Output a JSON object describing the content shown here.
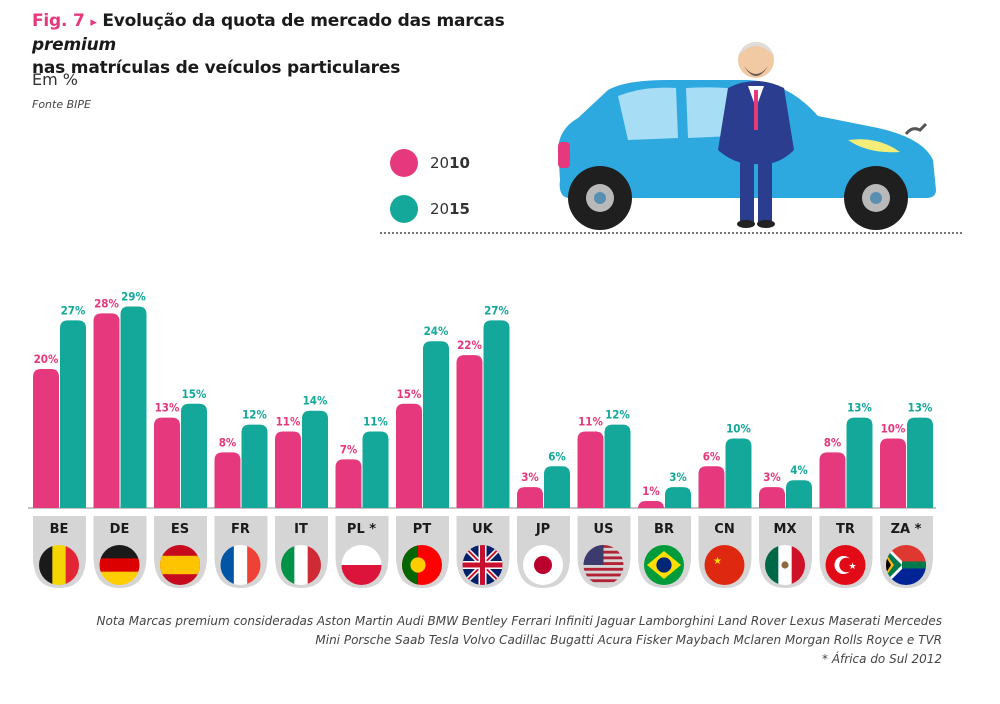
{
  "header": {
    "fig_label": "Fig. 7",
    "title_part1": "Evolução da quota de mercado das marcas ",
    "title_italic": "premium",
    "title_part2": "nas matrículas de veículos particulares",
    "subtitle": "Em %",
    "source": "Fonte  BIPE"
  },
  "legend": {
    "items": [
      {
        "prefix": "20",
        "suffix": "10",
        "color": "#e6387d"
      },
      {
        "prefix": "20",
        "suffix": "15",
        "color": "#13a899"
      }
    ]
  },
  "colors": {
    "series_2010": "#e6387d",
    "series_2015": "#13a899",
    "label_bg": "#d5d5d5",
    "car": "#2ea9e0"
  },
  "notes": {
    "line1": "Nota  Marcas premium consideradas  Aston Martin  Audi  BMW  Bentley  Ferrari  Infiniti  Jaguar  Lamborghini  Land Rover  Lexus  Maserati  Mercedes",
    "line2": "Mini  Porsche  Saab  Tesla  Volvo  Cadillac  Bugatti  Acura  Fisker  Maybach  Mclaren  Morgan  Rolls Royce e TVR",
    "line3": "* África do Sul  2012"
  },
  "chart_data": {
    "type": "bar",
    "categories": [
      "BE",
      "DE",
      "ES",
      "FR",
      "IT",
      "PL *",
      "PT",
      "UK",
      "JP",
      "US",
      "BR",
      "CN",
      "MX",
      "TR",
      "ZA *"
    ],
    "series": [
      {
        "name": "2010",
        "values": [
          20,
          28,
          13,
          8,
          11,
          7,
          15,
          22,
          3,
          11,
          1,
          6,
          3,
          8,
          10
        ]
      },
      {
        "name": "2015",
        "values": [
          27,
          29,
          15,
          12,
          14,
          11,
          24,
          27,
          6,
          12,
          3,
          10,
          4,
          13,
          13
        ]
      }
    ],
    "value_suffix": "%",
    "flag_icons": [
      "belgium-flag-icon",
      "germany-flag-icon",
      "spain-flag-icon",
      "france-flag-icon",
      "italy-flag-icon",
      "poland-flag-icon",
      "portugal-flag-icon",
      "uk-flag-icon",
      "japan-flag-icon",
      "usa-flag-icon",
      "brazil-flag-icon",
      "china-flag-icon",
      "mexico-flag-icon",
      "turkey-flag-icon",
      "south-africa-flag-icon"
    ],
    "grid": false,
    "legend_position": "top-center"
  }
}
